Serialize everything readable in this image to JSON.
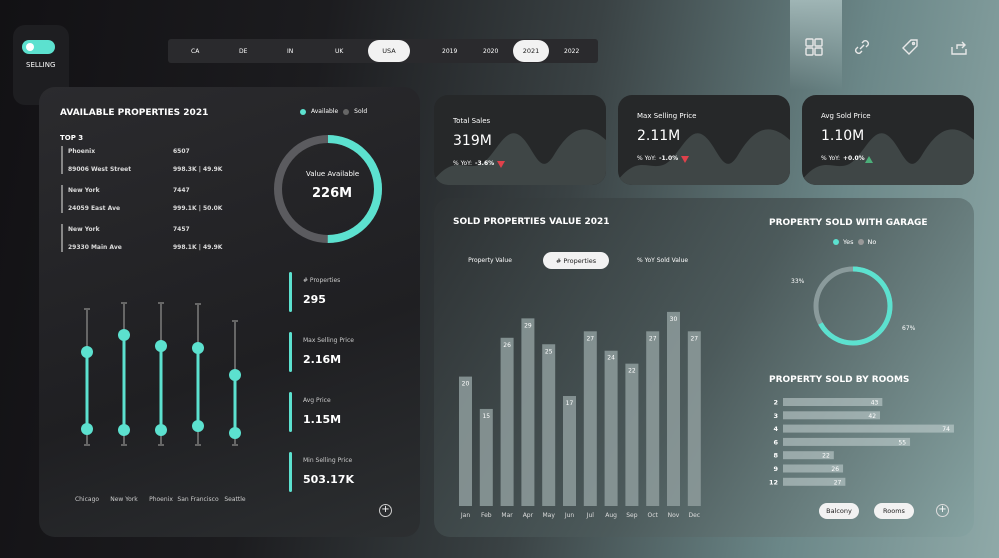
{
  "nav": {
    "toggle_label": "SELLING",
    "countries": [
      "CA",
      "DE",
      "IN",
      "UK",
      "USA"
    ],
    "selected_country": "USA",
    "years": [
      "2019",
      "2020",
      "2021",
      "2022"
    ],
    "selected_year": "2021",
    "icons": [
      "grid-icon",
      "link-icon",
      "tag-icon",
      "share-icon"
    ]
  },
  "available": {
    "title": "AVAILABLE PROPERTIES 2021",
    "legend": [
      "Available",
      "Sold"
    ],
    "top_label": "TOP 3",
    "top": [
      {
        "city": "Phoenix",
        "id": "6507",
        "address": "89006 West Street",
        "values": "998.3K | 49.9K"
      },
      {
        "city": "New York",
        "id": "7447",
        "address": "24059 East Ave",
        "values": "999.1K | 50.0K"
      },
      {
        "city": "New York",
        "id": "7457",
        "address": "29330 Main Ave",
        "values": "998.1K | 49.9K"
      }
    ],
    "donut_label": "Value Available",
    "donut_value": "226M",
    "available_fraction": 0.5,
    "cities": [
      "Chicago",
      "New York",
      "Phoenix",
      "San Francisco",
      "Seattle"
    ],
    "kpis": [
      {
        "label": "# Properties",
        "value": "295"
      },
      {
        "label": "Max Selling Price",
        "value": "2.16M"
      },
      {
        "label": "Avg Price",
        "value": "1.15M"
      },
      {
        "label": "Min Selling Price",
        "value": "503.17K"
      }
    ]
  },
  "cards": [
    {
      "label": "Total Sales",
      "value": "319M",
      "yoy_label": "% YoY:",
      "yoy": "-3.6%",
      "trend": "down"
    },
    {
      "label": "Max Selling Price",
      "value": "2.11M",
      "yoy_label": "% YoY:",
      "yoy": "-1.0%",
      "trend": "down"
    },
    {
      "label": "Avg Sold Price",
      "value": "1.10M",
      "yoy_label": "% YoY:",
      "yoy": "+0.0%",
      "trend": "up"
    }
  ],
  "sold": {
    "title": "SOLD PROPERTIES VALUE 2021",
    "tabs": [
      "Property Value",
      "# Properties",
      "% YoY Sold Value"
    ],
    "selected_tab": "# Properties"
  },
  "garage": {
    "title": "PROPERTY SOLD WITH GARAGE",
    "legend": [
      "Yes",
      "No"
    ],
    "yes_pct": "67%",
    "no_pct": "33%",
    "yes_fraction": 0.67
  },
  "rooms": {
    "title": "PROPERTY SOLD BY ROOMS",
    "buttons": [
      "Balcony",
      "Rooms"
    ]
  },
  "chart_data": [
    {
      "type": "bar",
      "categories": [
        "Jan",
        "Feb",
        "Mar",
        "Apr",
        "May",
        "Jun",
        "Jul",
        "Aug",
        "Sep",
        "Oct",
        "Nov",
        "Dec"
      ],
      "values": [
        20,
        15,
        26,
        29,
        25,
        17,
        27,
        24,
        22,
        27,
        30,
        27
      ],
      "title": "SOLD PROPERTIES VALUE 2021"
    },
    {
      "type": "bar",
      "orientation": "horizontal",
      "categories": [
        "2",
        "3",
        "4",
        "6",
        "8",
        "9",
        "12"
      ],
      "values": [
        43,
        42,
        74,
        55,
        22,
        26,
        27
      ],
      "title": "PROPERTY SOLD BY ROOMS"
    }
  ],
  "colors": {
    "accent": "#5ce1cf",
    "down": "#e0414b",
    "up": "#4caf7a"
  }
}
